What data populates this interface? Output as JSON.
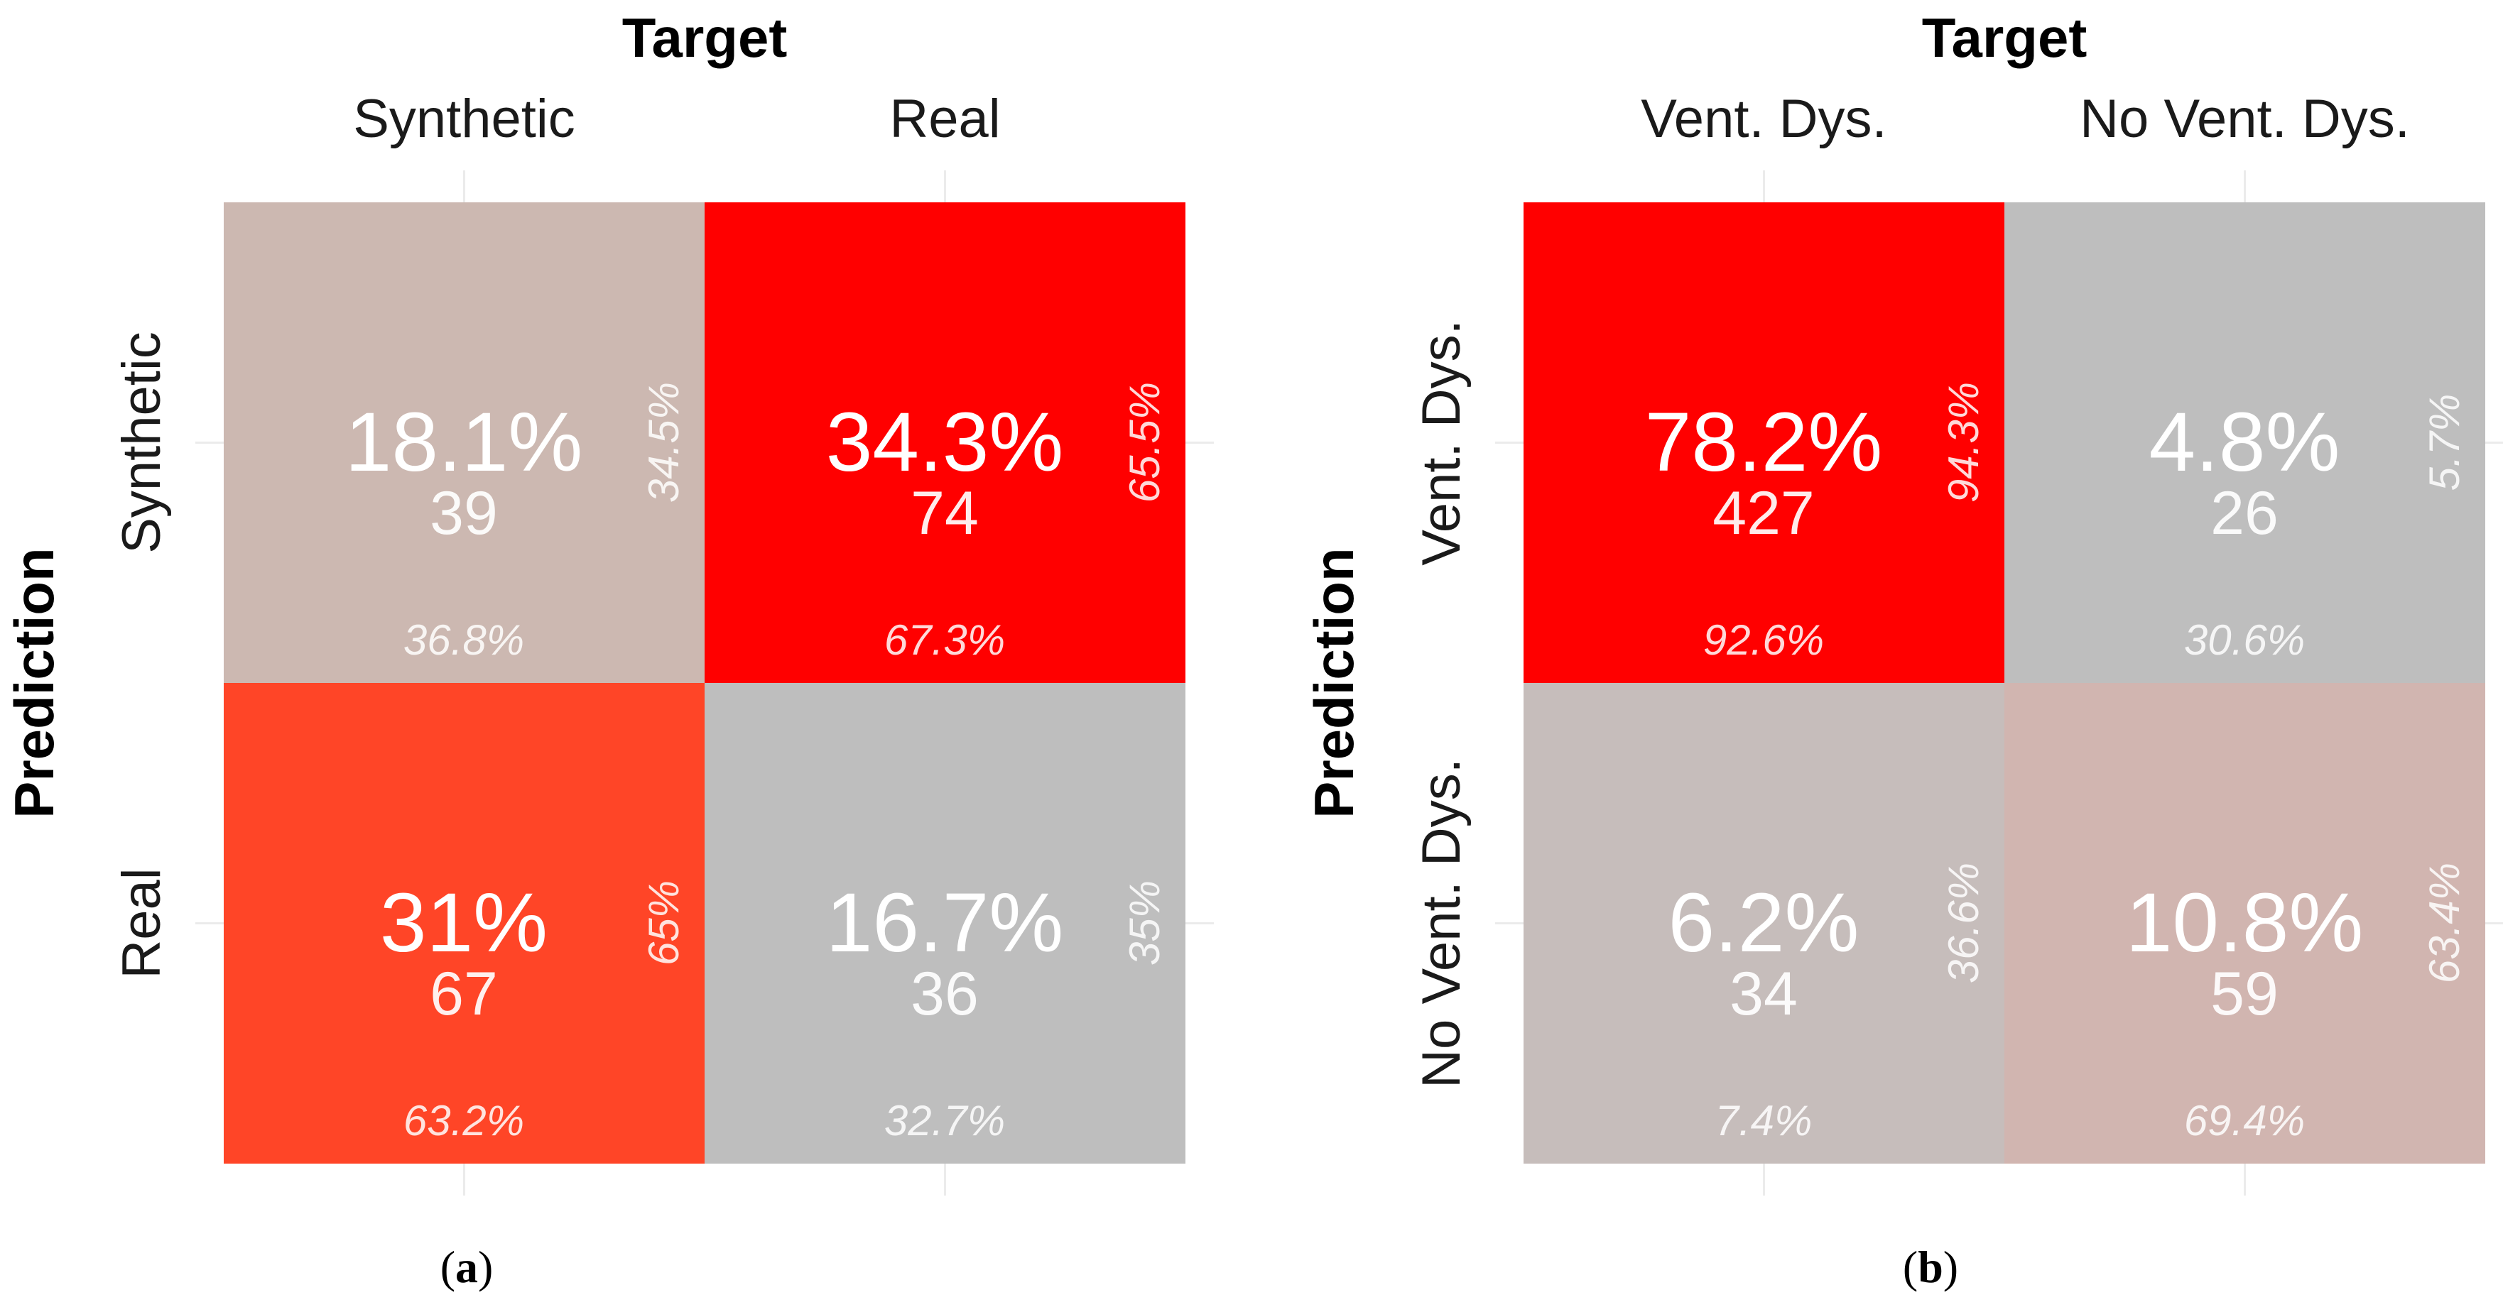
{
  "chart_data": [
    {
      "type": "heatmap",
      "panel_label": "a",
      "x_axis_title": "Target",
      "y_axis_title": "Prediction",
      "x_categories": [
        "Synthetic",
        "Real"
      ],
      "y_categories": [
        "Synthetic",
        "Real"
      ],
      "cells": [
        {
          "row": 0,
          "col": 0,
          "percent": "18.1%",
          "count": "39",
          "row_percent": "34.5%",
          "col_percent": "36.8%",
          "fill": "#ccb8b1"
        },
        {
          "row": 0,
          "col": 1,
          "percent": "34.3%",
          "count": "74",
          "row_percent": "65.5%",
          "col_percent": "67.3%",
          "fill": "#ff0000"
        },
        {
          "row": 1,
          "col": 0,
          "percent": "31%",
          "count": "67",
          "row_percent": "65%",
          "col_percent": "63.2%",
          "fill": "#ff4527"
        },
        {
          "row": 1,
          "col": 1,
          "percent": "16.7%",
          "count": "36",
          "row_percent": "35%",
          "col_percent": "32.7%",
          "fill": "#bebebe"
        }
      ]
    },
    {
      "type": "heatmap",
      "panel_label": "b",
      "x_axis_title": "Target",
      "y_axis_title": "Prediction",
      "x_categories": [
        "Vent. Dys.",
        "No Vent. Dys."
      ],
      "y_categories": [
        "Vent. Dys.",
        "No Vent. Dys."
      ],
      "cells": [
        {
          "row": 0,
          "col": 0,
          "percent": "78.2%",
          "count": "427",
          "row_percent": "94.3%",
          "col_percent": "92.6%",
          "fill": "#ff0000"
        },
        {
          "row": 0,
          "col": 1,
          "percent": "4.8%",
          "count": "26",
          "row_percent": "5.7%",
          "col_percent": "30.6%",
          "fill": "#bebebe"
        },
        {
          "row": 1,
          "col": 0,
          "percent": "6.2%",
          "count": "34",
          "row_percent": "36.6%",
          "col_percent": "7.4%",
          "fill": "#c6bdbb"
        },
        {
          "row": 1,
          "col": 1,
          "percent": "10.8%",
          "count": "59",
          "row_percent": "63.4%",
          "col_percent": "69.4%",
          "fill": "#d1b5b0"
        }
      ]
    }
  ]
}
